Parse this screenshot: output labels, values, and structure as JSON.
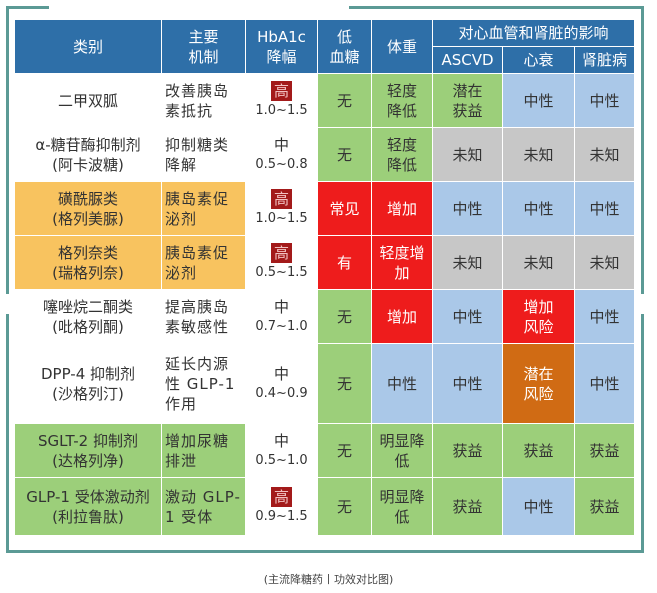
{
  "header": {
    "class": "类别",
    "mech": "主要\n机制",
    "hba1c": "HbA1c\n降幅",
    "hypo": "低\n血糖",
    "weight": "体重",
    "cv_group": "对心血管和肾脏的影响",
    "ascvd": "ASCVD",
    "hf": "心衰",
    "kidney": "肾脏病"
  },
  "rows": [
    {
      "class": "二甲双胍",
      "mech": "改善胰岛\n素抵抗",
      "hb_level": "高",
      "hb_range": "1.0~1.5",
      "hypo": "无",
      "weight": "轻度\n降低",
      "ascvd": "潜在\n获益",
      "hf": "中性",
      "kidney": "中性"
    },
    {
      "class": "α-糖苷酶抑制剂\n(阿卡波糖)",
      "mech": "抑制糖类\n降解",
      "hb_level": "中",
      "hb_range": "0.5~0.8",
      "hypo": "无",
      "weight": "轻度\n降低",
      "ascvd": "未知",
      "hf": "未知",
      "kidney": "未知"
    },
    {
      "class": "磺酰脲类\n(格列美脲)",
      "mech": "胰岛素促\n泌剂",
      "hb_level": "高",
      "hb_range": "1.0~1.5",
      "hypo": "常见",
      "weight": "增加",
      "ascvd": "中性",
      "hf": "中性",
      "kidney": "中性"
    },
    {
      "class": "格列奈类\n(瑞格列奈)",
      "mech": "胰岛素促\n泌剂",
      "hb_level": "高",
      "hb_range": "0.5~1.5",
      "hypo": "有",
      "weight": "轻度增\n加",
      "ascvd": "未知",
      "hf": "未知",
      "kidney": "未知"
    },
    {
      "class": "噻唑烷二酮类\n(吡格列酮)",
      "mech": "提高胰岛\n素敏感性",
      "hb_level": "中",
      "hb_range": "0.7~1.0",
      "hypo": "无",
      "weight": "增加",
      "ascvd": "中性",
      "hf": "增加\n风险",
      "kidney": "中性"
    },
    {
      "class": "DPP-4 抑制剂\n(沙格列汀)",
      "mech": "延长内源\n性 GLP-1\n作用",
      "hb_level": "中",
      "hb_range": "0.4~0.9",
      "hypo": "无",
      "weight": "中性",
      "ascvd": "中性",
      "hf": "潜在\n风险",
      "kidney": "中性"
    },
    {
      "class": "SGLT-2 抑制剂\n(达格列净)",
      "mech": "增加尿糖\n排泄",
      "hb_level": "中",
      "hb_range": "0.5~1.0",
      "hypo": "无",
      "weight": "明显降\n低",
      "ascvd": "获益",
      "hf": "获益",
      "kidney": "获益"
    },
    {
      "class": "GLP-1 受体激动剂\n(利拉鲁肽)",
      "mech": "激动 GLP-\n1 受体",
      "hb_level": "高",
      "hb_range": "0.9~1.5",
      "hypo": "无",
      "weight": "明显降\n低",
      "ascvd": "获益",
      "hf": "中性",
      "kidney": "获益"
    }
  ],
  "caption": "(主流降糖药丨功效对比图)",
  "colors": {
    "header": "#2e6fa8",
    "frame": "#5b9a95",
    "yellow": "#f8c35f",
    "lightgreen": "#9ccf7a",
    "gray": "#c7c7c7",
    "lightblue": "#aac8e8",
    "red": "#ee1c1c",
    "orange": "#d06b14",
    "green": "#77a74a",
    "hb_high": "#a31a1a"
  }
}
